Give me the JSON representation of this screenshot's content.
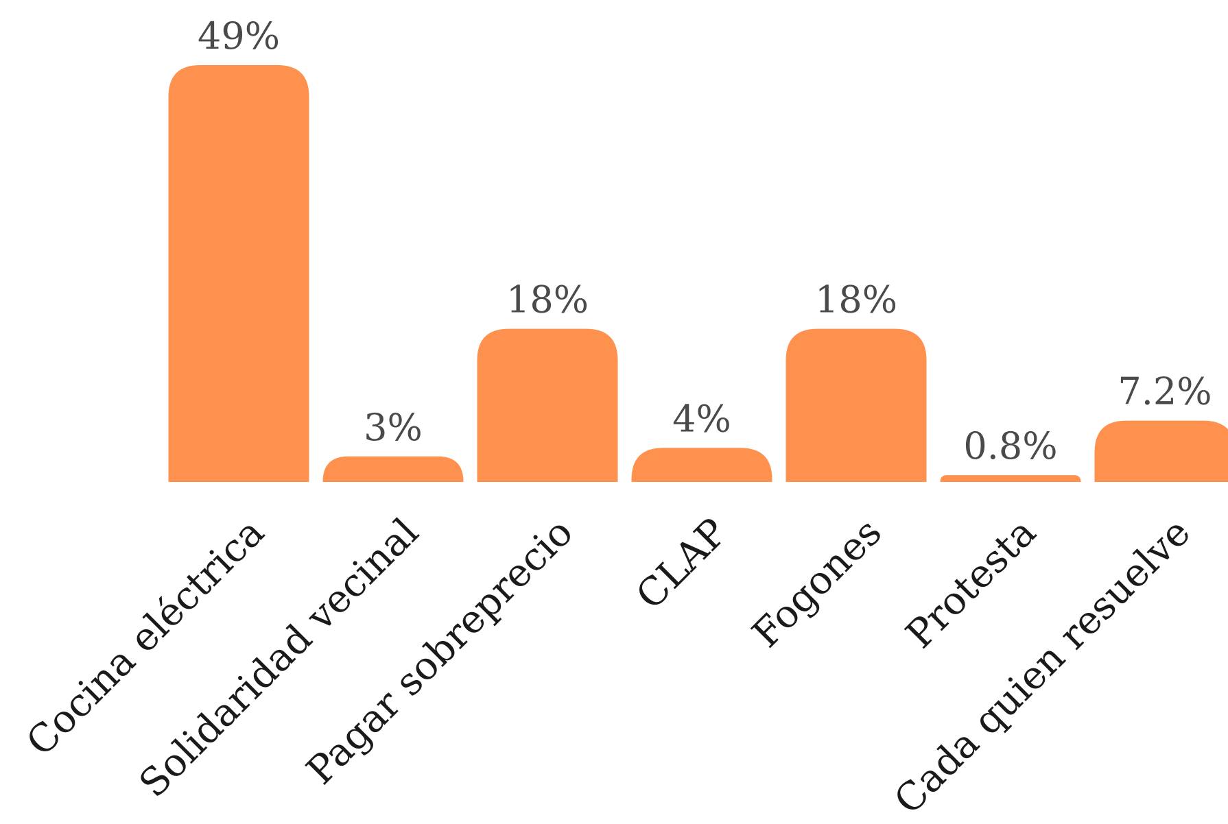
{
  "chart_data": {
    "type": "bar",
    "categories": [
      "Cocina eléctrica",
      "Solidaridad vecinal",
      "Pagar sobreprecio",
      "CLAP",
      "Fogones",
      "Protesta",
      "Cada quien resuelve"
    ],
    "values": [
      49,
      3,
      18,
      4,
      18,
      0.8,
      7.2
    ],
    "value_labels": [
      "49%",
      "3%",
      "18%",
      "4%",
      "18%",
      "0.8%",
      "7.2%"
    ],
    "title": "",
    "xlabel": "",
    "ylabel": "",
    "ylim": [
      0,
      49
    ],
    "grid": false,
    "bar_color": "#fe914e"
  }
}
